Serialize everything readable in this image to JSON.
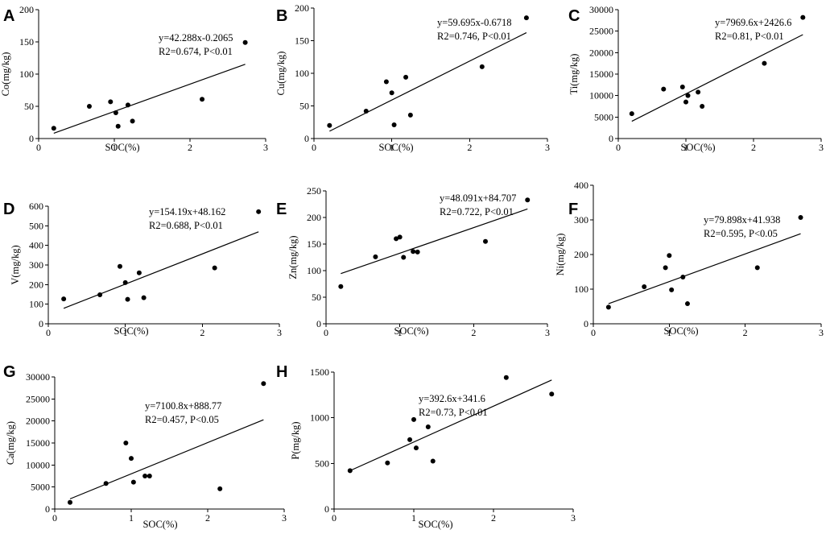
{
  "figure": {
    "background": "#ffffff",
    "ink": "#000000"
  },
  "chart_data": [
    {
      "type": "scatter",
      "letter": "A",
      "xlabel": "SOC(%)",
      "ylabel": "Co(mg/kg)",
      "xlim": [
        0,
        3
      ],
      "ylim": [
        0,
        200
      ],
      "xticks": [
        0,
        1,
        2,
        3
      ],
      "yticks": [
        0,
        50,
        100,
        150,
        200
      ],
      "x": [
        0.2,
        0.67,
        0.95,
        1.02,
        1.05,
        1.18,
        1.24,
        2.16,
        2.73
      ],
      "y": [
        16,
        50,
        57,
        40,
        19,
        52,
        27,
        61,
        149
      ],
      "fit": {
        "slope": 42.288,
        "intercept": -0.2065
      },
      "equation": "y=42.288x-0.2065",
      "stats": "R2=0.674, P<0.01"
    },
    {
      "type": "scatter",
      "letter": "B",
      "xlabel": "SOC(%)",
      "ylabel": "Cu(mg/kg)",
      "xlim": [
        0,
        3
      ],
      "ylim": [
        0,
        200
      ],
      "xticks": [
        0,
        1,
        2,
        3
      ],
      "yticks": [
        0,
        50,
        100,
        150,
        200
      ],
      "x": [
        0.2,
        0.67,
        0.93,
        1.0,
        1.03,
        1.18,
        1.24,
        2.16,
        2.73
      ],
      "y": [
        20,
        42,
        87,
        70,
        21,
        94,
        36,
        110,
        185
      ],
      "fit": {
        "slope": 59.695,
        "intercept": -0.6718
      },
      "equation": "y=59.695x-0.6718",
      "stats": "R2=0.746, P<0.01"
    },
    {
      "type": "scatter",
      "letter": "C",
      "xlabel": "SOC(%)",
      "ylabel": "Ti(mg/kg)",
      "xlim": [
        0,
        3
      ],
      "ylim": [
        0,
        30000
      ],
      "xticks": [
        0,
        1,
        2,
        3
      ],
      "yticks": [
        0,
        5000,
        10000,
        15000,
        20000,
        25000,
        30000
      ],
      "x": [
        0.2,
        0.67,
        0.95,
        1.0,
        1.03,
        1.18,
        1.24,
        2.16,
        2.73
      ],
      "y": [
        5800,
        11500,
        12000,
        8500,
        10000,
        10800,
        7500,
        17500,
        28200
      ],
      "fit": {
        "slope": 7969.6,
        "intercept": 2426.6
      },
      "equation": "y=7969.6x+2426.6",
      "stats": "R2=0.81, P<0.01"
    },
    {
      "type": "scatter",
      "letter": "D",
      "xlabel": "SOC(%)",
      "ylabel": "V(mg/kg)",
      "xlim": [
        0,
        3
      ],
      "ylim": [
        0,
        600
      ],
      "xticks": [
        0,
        1,
        2,
        3
      ],
      "yticks": [
        0,
        100,
        200,
        300,
        400,
        500,
        600
      ],
      "x": [
        0.2,
        0.67,
        0.93,
        1.0,
        1.03,
        1.18,
        1.24,
        2.16,
        2.73
      ],
      "y": [
        127,
        148,
        293,
        210,
        125,
        260,
        133,
        285,
        572
      ],
      "fit": {
        "slope": 154.19,
        "intercept": 48.162
      },
      "equation": "y=154.19x+48.162",
      "stats": "R2=0.688, P<0.01"
    },
    {
      "type": "scatter",
      "letter": "E",
      "xlabel": "SOC(%)",
      "ylabel": "Zn(mg/kg)",
      "xlim": [
        0,
        3
      ],
      "ylim": [
        0,
        250
      ],
      "xticks": [
        0,
        1,
        2,
        3
      ],
      "yticks": [
        0,
        50,
        100,
        150,
        200,
        250
      ],
      "x": [
        0.2,
        0.67,
        0.95,
        1.0,
        1.05,
        1.18,
        1.24,
        2.16,
        2.73
      ],
      "y": [
        70,
        126,
        160,
        163,
        125,
        136,
        135,
        155,
        233
      ],
      "fit": {
        "slope": 48.091,
        "intercept": 84.707
      },
      "equation": "y=48.091x+84.707",
      "stats": "R2=0.722, P<0.01"
    },
    {
      "type": "scatter",
      "letter": "F",
      "xlabel": "SOC(%)",
      "ylabel": "Ni(mg/kg)",
      "xlim": [
        0,
        3
      ],
      "ylim": [
        0,
        400
      ],
      "xticks": [
        0,
        1,
        2,
        3
      ],
      "yticks": [
        0,
        100,
        200,
        300,
        400
      ],
      "x": [
        0.2,
        0.67,
        0.95,
        1.0,
        1.03,
        1.18,
        1.24,
        2.16,
        2.73
      ],
      "y": [
        48,
        107,
        162,
        197,
        98,
        135,
        58,
        162,
        307
      ],
      "fit": {
        "slope": 79.898,
        "intercept": 41.938
      },
      "equation": "y=79.898x+41.938",
      "stats": "R2=0.595, P<0.05"
    },
    {
      "type": "scatter",
      "letter": "G",
      "xlabel": "SOC(%)",
      "ylabel": "Ca(mg/kg)",
      "xlim": [
        0,
        3
      ],
      "ylim": [
        0,
        30000
      ],
      "xticks": [
        0,
        1,
        2,
        3
      ],
      "yticks": [
        0,
        5000,
        10000,
        15000,
        20000,
        25000,
        30000
      ],
      "x": [
        0.2,
        0.67,
        0.93,
        1.0,
        1.03,
        1.18,
        1.24,
        2.16,
        2.73
      ],
      "y": [
        1500,
        5800,
        15000,
        11500,
        6100,
        7500,
        7500,
        4600,
        28500
      ],
      "fit": {
        "slope": 7100.8,
        "intercept": 888.77
      },
      "equation": "y=7100.8x+888.77",
      "stats": "R2=0.457, P<0.05"
    },
    {
      "type": "scatter",
      "letter": "H",
      "xlabel": "SOC(%)",
      "ylabel": "P(mg/kg)",
      "xlim": [
        0,
        3
      ],
      "ylim": [
        0,
        1500
      ],
      "xticks": [
        0,
        1,
        2,
        3
      ],
      "yticks": [
        0,
        500,
        1000,
        1500
      ],
      "x": [
        0.2,
        0.67,
        0.95,
        1.0,
        1.03,
        1.18,
        1.24,
        2.16,
        2.73
      ],
      "y": [
        420,
        505,
        760,
        980,
        670,
        900,
        525,
        1440,
        1260
      ],
      "fit": {
        "slope": 392.6,
        "intercept": 341.6
      },
      "equation": "y=392.6x+341.6",
      "stats": "R2=0.73, P<0.01"
    }
  ]
}
